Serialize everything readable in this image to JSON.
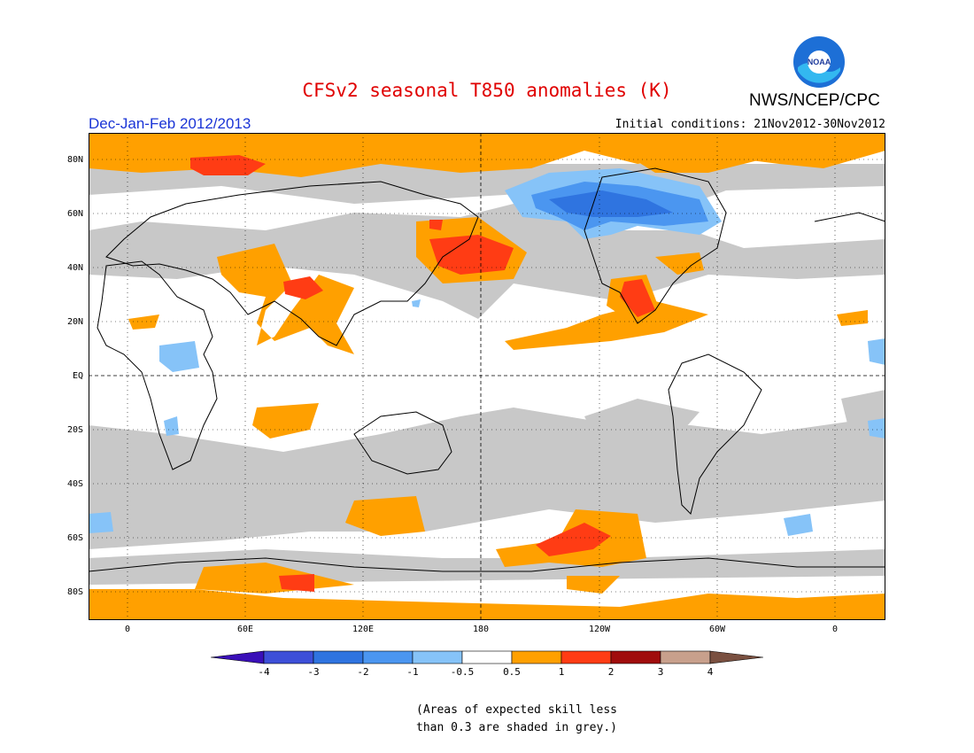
{
  "header": {
    "title": "CFSv2 seasonal T850 anomalies (K)",
    "agency": "NWS/NCEP/CPC",
    "period": "Dec-Jan-Feb 2012/2013",
    "initial_conditions": "Initial conditions: 21Nov2012-30Nov2012",
    "logo_text": "NOAA"
  },
  "map": {
    "lat_labels": [
      "80N",
      "60N",
      "40N",
      "20N",
      "EQ",
      "20S",
      "40S",
      "60S",
      "80S"
    ],
    "lon_labels": [
      "0",
      "60E",
      "120E",
      "180",
      "120W",
      "60W",
      "0"
    ]
  },
  "colorbar": {
    "labels": [
      "-4",
      "-3",
      "-2",
      "-1",
      "-0.5",
      "0.5",
      "1",
      "2",
      "3",
      "4"
    ],
    "colors": [
      "#3a0fb8",
      "#3d4fd8",
      "#2f74e0",
      "#4b96f0",
      "#86c3f8",
      "#ffffff",
      "#ffa000",
      "#ff3c14",
      "#a00c0c",
      "#c8a08c",
      "#7a5040"
    ]
  },
  "footnote": {
    "line1": "(Areas of expected skill less",
    "line2": "than 0.3 are shaded in grey.)"
  },
  "colors": {
    "title": "#e00000",
    "period": "#1a34d6",
    "grey_skill": "#c8c8c8",
    "warm": "#ffa000",
    "hot": "#ff3c14",
    "cold": "#2f74e0",
    "cool": "#4b96f0"
  }
}
